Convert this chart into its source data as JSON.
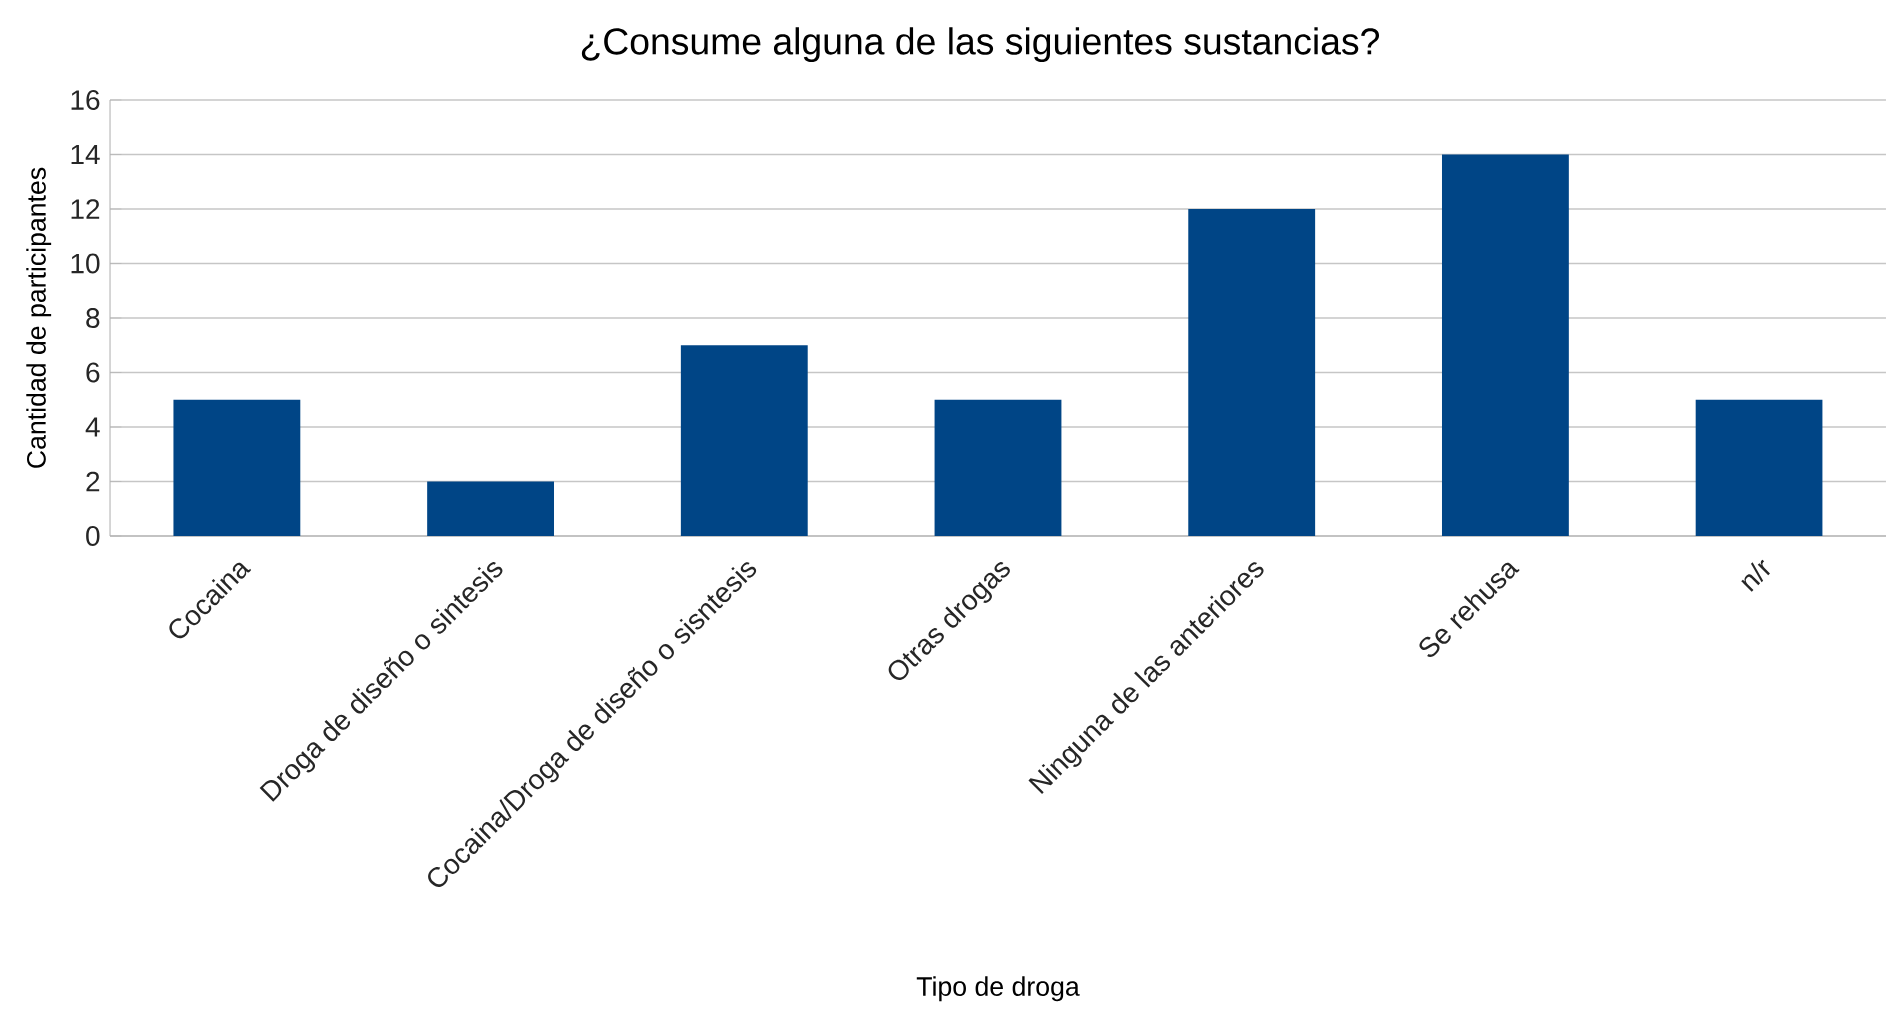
{
  "chart_data": {
    "type": "bar",
    "title": "¿Consume alguna de las siguientes sustancias?",
    "xlabel": "Tipo de droga",
    "ylabel": "Cantidad de participantes",
    "categories": [
      "Cocaina",
      "Droga de diseño o sintesis",
      "Cocaina/Droga de diseño o sisntesis",
      "Otras drogas",
      "Ninguna de las anteriores",
      "Se rehusa",
      "n/r"
    ],
    "values": [
      5,
      2,
      7,
      5,
      12,
      14,
      5
    ],
    "color": "#004586",
    "ylim": [
      0,
      16
    ],
    "yticks": [
      0,
      2,
      4,
      6,
      8,
      10,
      12,
      14,
      16
    ],
    "grid": "y"
  }
}
